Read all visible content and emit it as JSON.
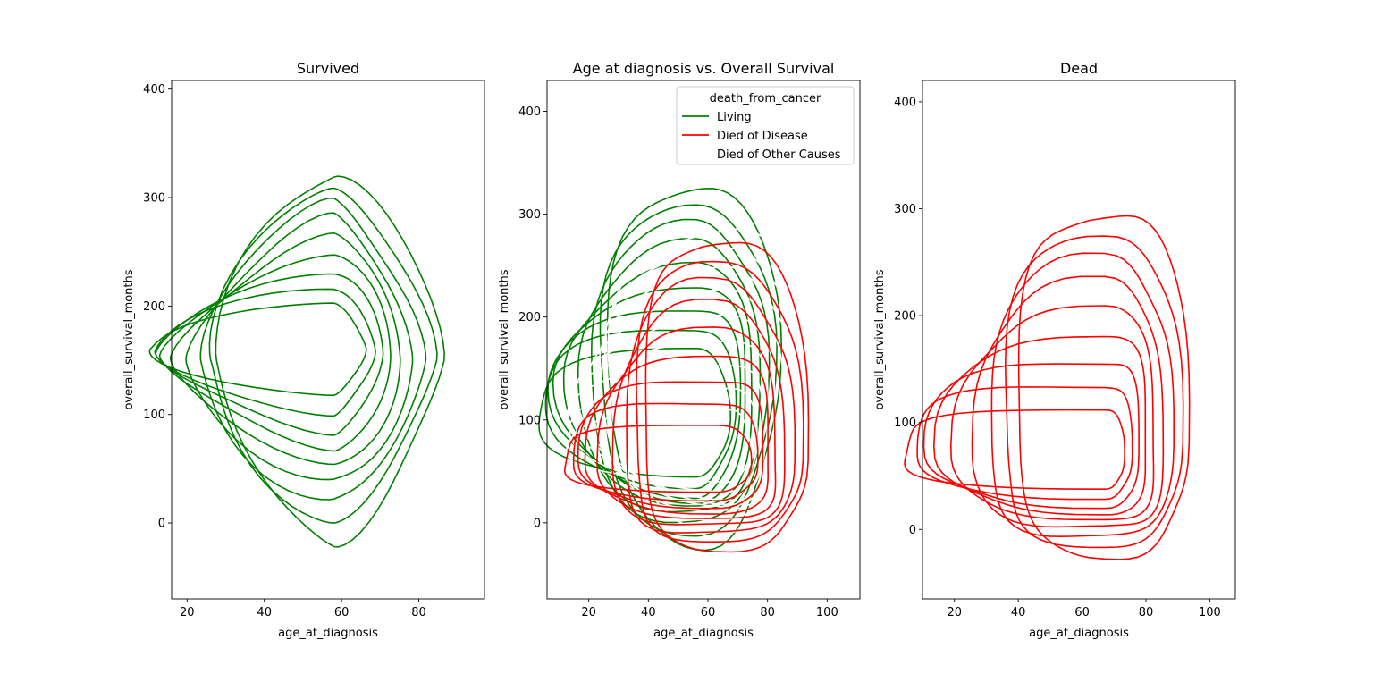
{
  "chart_data": [
    {
      "type": "kde_contour",
      "title": "Survived",
      "xlabel": "age_at_diagnosis",
      "ylabel": "overall_survival_months",
      "xlim": [
        16,
        97
      ],
      "ylim": [
        -70,
        408
      ],
      "xticks": [
        20,
        40,
        60,
        80
      ],
      "yticks": [
        0,
        100,
        200,
        300,
        400
      ],
      "series": [
        {
          "color": "#008000",
          "center": [
            58,
            150
          ],
          "outer": {
            "x": [
              31,
              86
            ],
            "y": [
              -16,
              325
            ]
          },
          "inner": {
            "x": [
              50,
              66
            ],
            "y": [
              118,
              203
            ]
          },
          "levels": 9,
          "skew": 1.5
        }
      ]
    },
    {
      "type": "kde_contour",
      "title": "Age at diagnosis vs. Overall Survival",
      "xlabel": "age_at_diagnosis",
      "ylabel": "overall_survival_months",
      "xlim": [
        6,
        111
      ],
      "ylim": [
        -74,
        430
      ],
      "xticks": [
        20,
        40,
        60,
        80,
        100
      ],
      "yticks": [
        0,
        100,
        200,
        300,
        400
      ],
      "legend": {
        "title": "death_from_cancer",
        "position": "upper-right",
        "entries": [
          {
            "label": "Living",
            "color": "#008000"
          },
          {
            "label": "Died of Disease",
            "color": "#ff0000"
          },
          {
            "label": "Died of Other Causes",
            "color": "#ffffff"
          }
        ]
      },
      "series": [
        {
          "color": "#008000",
          "center": [
            56,
            155
          ],
          "outer": {
            "x": [
              30,
              84
            ],
            "y": [
              -20,
              330
            ]
          },
          "inner": {
            "x": [
              55,
              67
            ],
            "y": [
              45,
              170
            ]
          },
          "levels": 9,
          "skew": 2.2
        },
        {
          "color": "#ffffff",
          "center": [
            68,
            150
          ],
          "outer": {
            "x": [
              42,
              92
            ],
            "y": [
              -15,
              290
            ]
          },
          "inner": {
            "x": [
              58,
              74
            ],
            "y": [
              40,
              110
            ]
          },
          "levels": 9,
          "skew": 2.0
        },
        {
          "color": "#ff0000",
          "center": [
            62,
            60
          ],
          "outer": {
            "x": [
              23,
              93
            ],
            "y": [
              -25,
              278
            ]
          },
          "inner": {
            "x": [
              52,
              74
            ],
            "y": [
              30,
              95
            ]
          },
          "levels": 9,
          "skew": 2.8
        }
      ]
    },
    {
      "type": "kde_contour",
      "title": "Dead",
      "xlabel": "age_at_diagnosis",
      "ylabel": "overall_survival_months",
      "xlim": [
        10,
        108
      ],
      "ylim": [
        -65,
        420
      ],
      "xticks": [
        20,
        40,
        60,
        80,
        100
      ],
      "yticks": [
        0,
        100,
        200,
        300,
        400
      ],
      "series": [
        {
          "color": "#ff0000",
          "center": [
            67,
            80
          ],
          "outer": {
            "x": [
              27,
              93
            ],
            "y": [
              -24,
              299
            ]
          },
          "inner": {
            "x": [
              65,
              73
            ],
            "y": [
              38,
              112
            ]
          },
          "levels": 9,
          "skew": 2.8
        }
      ]
    }
  ]
}
